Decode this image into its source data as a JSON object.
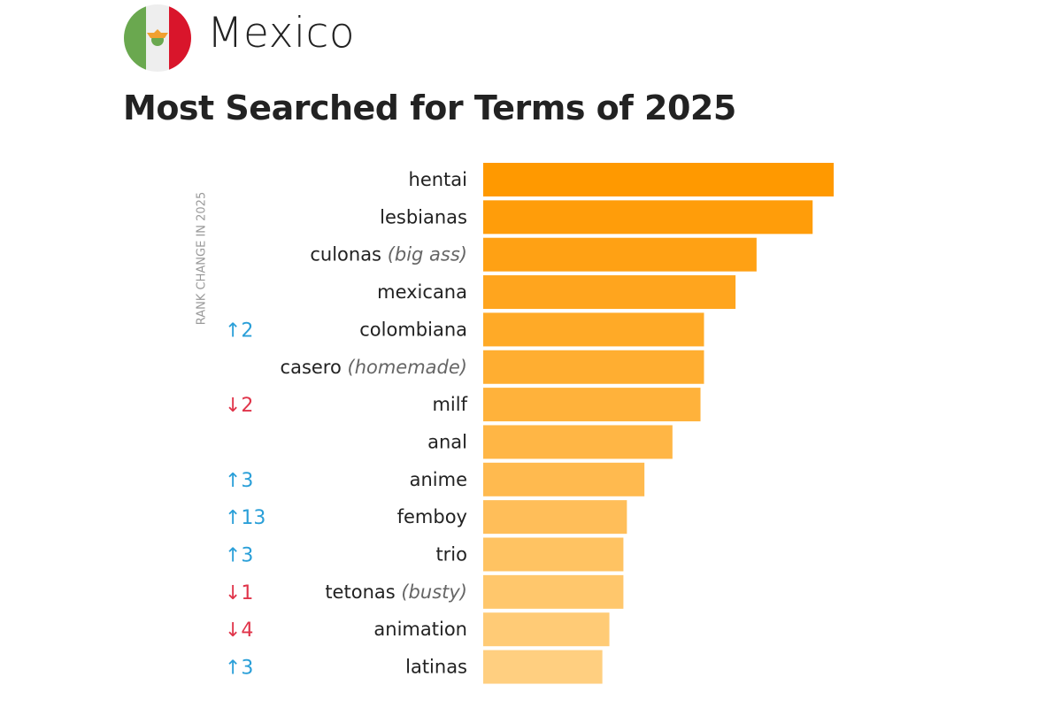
{
  "header": {
    "country": "Mexico",
    "title": "Most Searched for Terms of 2025",
    "flag_icon": "mexico-flag-icon"
  },
  "chart_data": {
    "type": "bar",
    "orientation": "horizontal",
    "title": "Most Searched for Terms of 2025",
    "side_label": "RANK CHANGE IN 2025",
    "value_note": "relative bar length, top term = 100 (no axis printed)",
    "categories": [
      "hentai",
      "lesbianas",
      "culonas",
      "mexicana",
      "colombiana",
      "casero",
      "milf",
      "anal",
      "anime",
      "femboy",
      "trio",
      "tetonas",
      "animation",
      "latinas"
    ],
    "translations": [
      "",
      "",
      "(big ass)",
      "",
      "",
      "(homemade)",
      "",
      "",
      "",
      "",
      "",
      "(busty)",
      "",
      ""
    ],
    "values": [
      100,
      94,
      78,
      72,
      63,
      63,
      62,
      54,
      46,
      41,
      40,
      40,
      36,
      34
    ],
    "rank_change": [
      "",
      "",
      "",
      "",
      "↑2",
      "",
      "↓2",
      "",
      "↑3",
      "↑13",
      "↑3",
      "↓1",
      "↓4",
      "↑3"
    ],
    "colors": {
      "bar_top": "#ff9900",
      "bar_bottom": "#ffcf80",
      "up": "#2a9fd8",
      "down": "#e0344a"
    }
  }
}
